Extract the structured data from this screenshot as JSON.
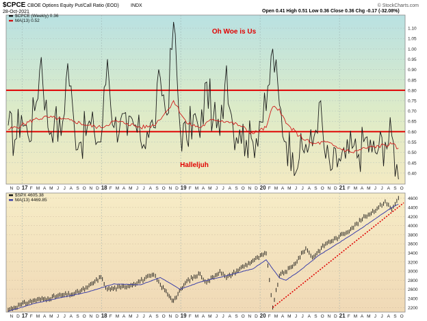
{
  "header": {
    "symbol": "$CPCE",
    "description": "CBOE Options Equity Put/Call Ratio (EOD)",
    "exchange": "INDX",
    "date": "28-Oct-2021",
    "ohlc": "Open 0.41  High 0.51  Low 0.36  Close 0.36  Chg -0.17 (-32.08%)",
    "watermark": "© StockCharts.com"
  },
  "colors": {
    "ratio_line": "#1a1a1a",
    "ma_line": "#d11a1a",
    "threshold_line": "#e00000",
    "spx_bars": "#111111",
    "spx_ma": "#3b3fa8",
    "trend_line": "#e00000",
    "annotation": "#e00000"
  },
  "chart_data": [
    {
      "type": "line",
      "legend": [
        "$CPCE (Weekly) 0.36",
        "MA(13) 0.52"
      ],
      "annotations": [
        "Oh Woe is Us",
        "Halleljuh"
      ],
      "thresholds": [
        0.8,
        0.6
      ],
      "ylim": [
        0.35,
        1.15
      ],
      "yticks": [
        "1.10",
        "1.05",
        "1.00",
        "0.95",
        "0.90",
        "0.85",
        "0.80",
        "0.75",
        "0.70",
        "0.65",
        "0.60",
        "0.55",
        "0.50",
        "0.45",
        "0.40"
      ],
      "x_start": "2016-11",
      "x_end": "2021-10",
      "series": [
        {
          "name": "$CPCE (Weekly)",
          "points": [
            [
              "2016-11",
              0.63
            ],
            [
              "2016-12",
              0.56
            ],
            [
              "2017-01",
              0.68
            ],
            [
              "2017-02",
              0.58
            ],
            [
              "2017-03",
              0.7
            ],
            [
              "2017-04",
              0.96
            ],
            [
              "2017-05",
              0.62
            ],
            [
              "2017-06",
              0.66
            ],
            [
              "2017-07",
              0.58
            ],
            [
              "2017-08",
              0.93
            ],
            [
              "2017-09",
              0.62
            ],
            [
              "2017-10",
              0.55
            ],
            [
              "2017-11",
              0.63
            ],
            [
              "2017-12",
              0.6
            ],
            [
              "2018-01",
              0.55
            ],
            [
              "2018-02",
              0.95
            ],
            [
              "2018-03",
              0.62
            ],
            [
              "2018-04",
              0.66
            ],
            [
              "2018-05",
              0.58
            ],
            [
              "2018-06",
              0.63
            ],
            [
              "2018-07",
              0.56
            ],
            [
              "2018-08",
              0.6
            ],
            [
              "2018-09",
              0.62
            ],
            [
              "2018-10",
              0.86
            ],
            [
              "2018-11",
              0.68
            ],
            [
              "2018-12",
              1.13
            ],
            [
              "2019-01",
              0.61
            ],
            [
              "2019-02",
              0.56
            ],
            [
              "2019-03",
              0.68
            ],
            [
              "2019-04",
              0.57
            ],
            [
              "2019-05",
              0.84
            ],
            [
              "2019-06",
              0.66
            ],
            [
              "2019-07",
              0.58
            ],
            [
              "2019-08",
              0.92
            ],
            [
              "2019-09",
              0.62
            ],
            [
              "2019-10",
              0.61
            ],
            [
              "2019-11",
              0.56
            ],
            [
              "2019-12",
              0.55
            ],
            [
              "2020-01",
              0.65
            ],
            [
              "2020-02",
              0.7
            ],
            [
              "2020-03",
              1.0
            ],
            [
              "2020-04",
              0.73
            ],
            [
              "2020-05",
              0.55
            ],
            [
              "2020-06",
              0.5
            ],
            [
              "2020-07",
              0.47
            ],
            [
              "2020-08",
              0.54
            ],
            [
              "2020-09",
              0.53
            ],
            [
              "2020-10",
              0.74
            ],
            [
              "2020-11",
              0.47
            ],
            [
              "2020-12",
              0.42
            ],
            [
              "2021-01",
              0.47
            ],
            [
              "2021-02",
              0.47
            ],
            [
              "2021-03",
              0.52
            ],
            [
              "2021-04",
              0.49
            ],
            [
              "2021-05",
              0.57
            ],
            [
              "2021-06",
              0.5
            ],
            [
              "2021-07",
              0.52
            ],
            [
              "2021-08",
              0.55
            ],
            [
              "2021-09",
              0.58
            ],
            [
              "2021-10",
              0.36
            ]
          ]
        },
        {
          "name": "MA(13)",
          "points": [
            [
              "2016-11",
              0.61
            ],
            [
              "2017-01",
              0.63
            ],
            [
              "2017-03",
              0.66
            ],
            [
              "2017-05",
              0.67
            ],
            [
              "2017-07",
              0.66
            ],
            [
              "2017-09",
              0.65
            ],
            [
              "2017-11",
              0.63
            ],
            [
              "2018-01",
              0.62
            ],
            [
              "2018-03",
              0.65
            ],
            [
              "2018-05",
              0.64
            ],
            [
              "2018-07",
              0.62
            ],
            [
              "2018-09",
              0.63
            ],
            [
              "2018-11",
              0.7
            ],
            [
              "2018-12",
              0.75
            ],
            [
              "2019-02",
              0.64
            ],
            [
              "2019-04",
              0.62
            ],
            [
              "2019-06",
              0.66
            ],
            [
              "2019-08",
              0.65
            ],
            [
              "2019-10",
              0.63
            ],
            [
              "2019-12",
              0.59
            ],
            [
              "2020-02",
              0.62
            ],
            [
              "2020-03",
              0.72
            ],
            [
              "2020-04",
              0.71
            ],
            [
              "2020-05",
              0.64
            ],
            [
              "2020-07",
              0.58
            ],
            [
              "2020-09",
              0.54
            ],
            [
              "2020-11",
              0.55
            ],
            [
              "2021-01",
              0.52
            ],
            [
              "2021-03",
              0.5
            ],
            [
              "2021-05",
              0.52
            ],
            [
              "2021-07",
              0.53
            ],
            [
              "2021-09",
              0.54
            ],
            [
              "2021-10",
              0.52
            ]
          ]
        }
      ],
      "xticks": [
        "N",
        "D",
        "17",
        "F",
        "M",
        "A",
        "M",
        "J",
        "J",
        "A",
        "S",
        "O",
        "N",
        "D",
        "18",
        "F",
        "M",
        "A",
        "M",
        "J",
        "J",
        "A",
        "S",
        "O",
        "N",
        "D",
        "19",
        "F",
        "M",
        "A",
        "M",
        "J",
        "J",
        "A",
        "S",
        "O",
        "N",
        "D",
        "20",
        "F",
        "M",
        "A",
        "M",
        "J",
        "J",
        "A",
        "S",
        "O",
        "N",
        "D",
        "21",
        "F",
        "M",
        "A",
        "M",
        "J",
        "J",
        "A",
        "S",
        "O"
      ]
    },
    {
      "type": "line",
      "legend": [
        "$SPX 4605.38",
        "MA(13) 4469.85"
      ],
      "ylim": [
        2100,
        4700
      ],
      "yticks": [
        "4600",
        "4400",
        "4200",
        "4000",
        "3800",
        "3600",
        "3400",
        "3200",
        "3000",
        "2800",
        "2600",
        "2400",
        "2200"
      ],
      "x_start": "2016-11",
      "x_end": "2021-10",
      "series": [
        {
          "name": "$SPX",
          "points": [
            [
              "2016-11",
              2150
            ],
            [
              "2017-01",
              2270
            ],
            [
              "2017-03",
              2360
            ],
            [
              "2017-05",
              2400
            ],
            [
              "2017-07",
              2470
            ],
            [
              "2017-09",
              2500
            ],
            [
              "2017-11",
              2640
            ],
            [
              "2018-01",
              2870
            ],
            [
              "2018-02",
              2600
            ],
            [
              "2018-04",
              2640
            ],
            [
              "2018-06",
              2720
            ],
            [
              "2018-09",
              2920
            ],
            [
              "2018-10",
              2700
            ],
            [
              "2018-12",
              2350
            ],
            [
              "2019-02",
              2780
            ],
            [
              "2019-04",
              2940
            ],
            [
              "2019-05",
              2750
            ],
            [
              "2019-07",
              3000
            ],
            [
              "2019-08",
              2850
            ],
            [
              "2019-10",
              3050
            ],
            [
              "2019-12",
              3230
            ],
            [
              "2020-02",
              3390
            ],
            [
              "2020-03",
              2200
            ],
            [
              "2020-04",
              2900
            ],
            [
              "2020-06",
              3100
            ],
            [
              "2020-08",
              3500
            ],
            [
              "2020-09",
              3300
            ],
            [
              "2020-11",
              3600
            ],
            [
              "2021-01",
              3750
            ],
            [
              "2021-03",
              3950
            ],
            [
              "2021-05",
              4200
            ],
            [
              "2021-07",
              4400
            ],
            [
              "2021-08",
              4530
            ],
            [
              "2021-09",
              4350
            ],
            [
              "2021-10",
              4605
            ]
          ]
        },
        {
          "name": "MA(13)",
          "points": [
            [
              "2016-11",
              2120
            ],
            [
              "2017-03",
              2290
            ],
            [
              "2017-07",
              2420
            ],
            [
              "2017-11",
              2540
            ],
            [
              "2018-03",
              2720
            ],
            [
              "2018-07",
              2700
            ],
            [
              "2018-10",
              2860
            ],
            [
              "2019-01",
              2600
            ],
            [
              "2019-04",
              2760
            ],
            [
              "2019-08",
              2900
            ],
            [
              "2019-12",
              3050
            ],
            [
              "2020-02",
              3250
            ],
            [
              "2020-04",
              2850
            ],
            [
              "2020-05",
              2800
            ],
            [
              "2020-07",
              3000
            ],
            [
              "2020-10",
              3350
            ],
            [
              "2021-01",
              3620
            ],
            [
              "2021-04",
              3900
            ],
            [
              "2021-07",
              4200
            ],
            [
              "2021-09",
              4400
            ],
            [
              "2021-10",
              4470
            ]
          ]
        }
      ],
      "trend_line": [
        [
          "2020-03",
          2200
        ],
        [
          "2021-10",
          4500
        ]
      ],
      "xticks": [
        "N",
        "D",
        "17",
        "F",
        "M",
        "A",
        "M",
        "J",
        "J",
        "A",
        "S",
        "O",
        "N",
        "D",
        "18",
        "F",
        "M",
        "A",
        "M",
        "J",
        "J",
        "A",
        "S",
        "O",
        "N",
        "D",
        "19",
        "F",
        "M",
        "A",
        "M",
        "J",
        "J",
        "A",
        "S",
        "O",
        "N",
        "D",
        "20",
        "F",
        "M",
        "A",
        "M",
        "J",
        "J",
        "A",
        "S",
        "O",
        "N",
        "D",
        "21",
        "F",
        "M",
        "A",
        "M",
        "J",
        "J",
        "A",
        "S",
        "O"
      ]
    }
  ]
}
